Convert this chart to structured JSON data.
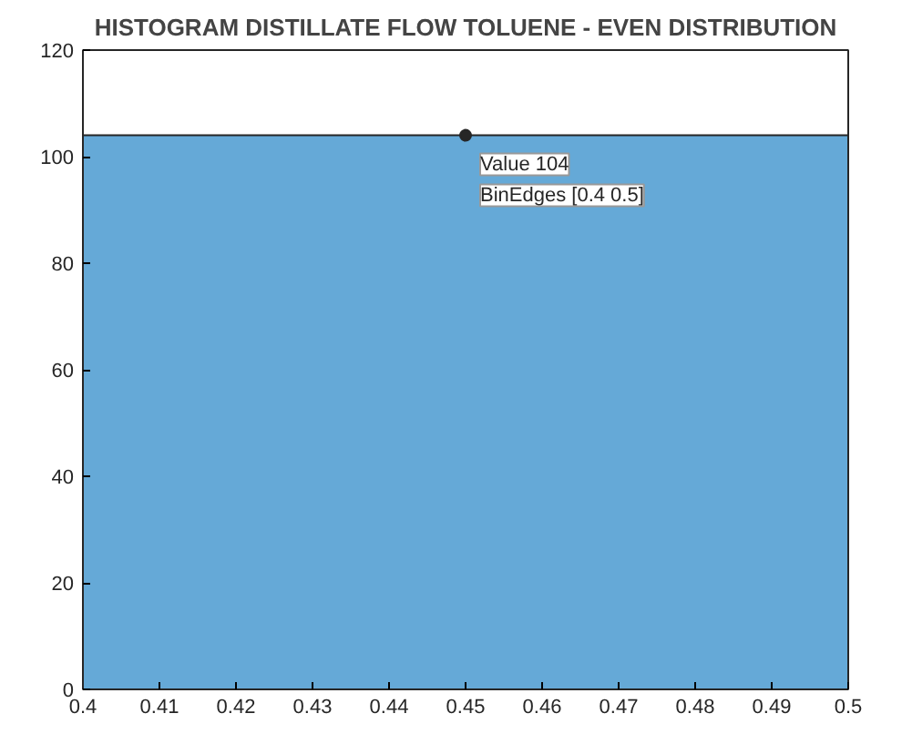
{
  "chart_data": {
    "type": "histogram",
    "title": "HISTOGRAM DISTILLATE FLOW TOLUENE - EVEN DISTRIBUTION",
    "bins": [
      0.4,
      0.5
    ],
    "values": [
      104
    ],
    "color": "#65a9d7",
    "xlim": [
      0.4,
      0.5
    ],
    "xticks": [
      0.4,
      0.41,
      0.42,
      0.43,
      0.44,
      0.45,
      0.46,
      0.47,
      0.48,
      0.49,
      0.5
    ],
    "ylim": [
      0,
      120
    ],
    "yticks": [
      0,
      20,
      40,
      60,
      80,
      100,
      120
    ],
    "annotations": [
      {
        "text": "Value 104",
        "x": 0.45,
        "y": 104
      },
      {
        "text": "BinEdges [0.4 0.5]",
        "x": 0.45,
        "y": 104
      }
    ],
    "grid": false
  }
}
